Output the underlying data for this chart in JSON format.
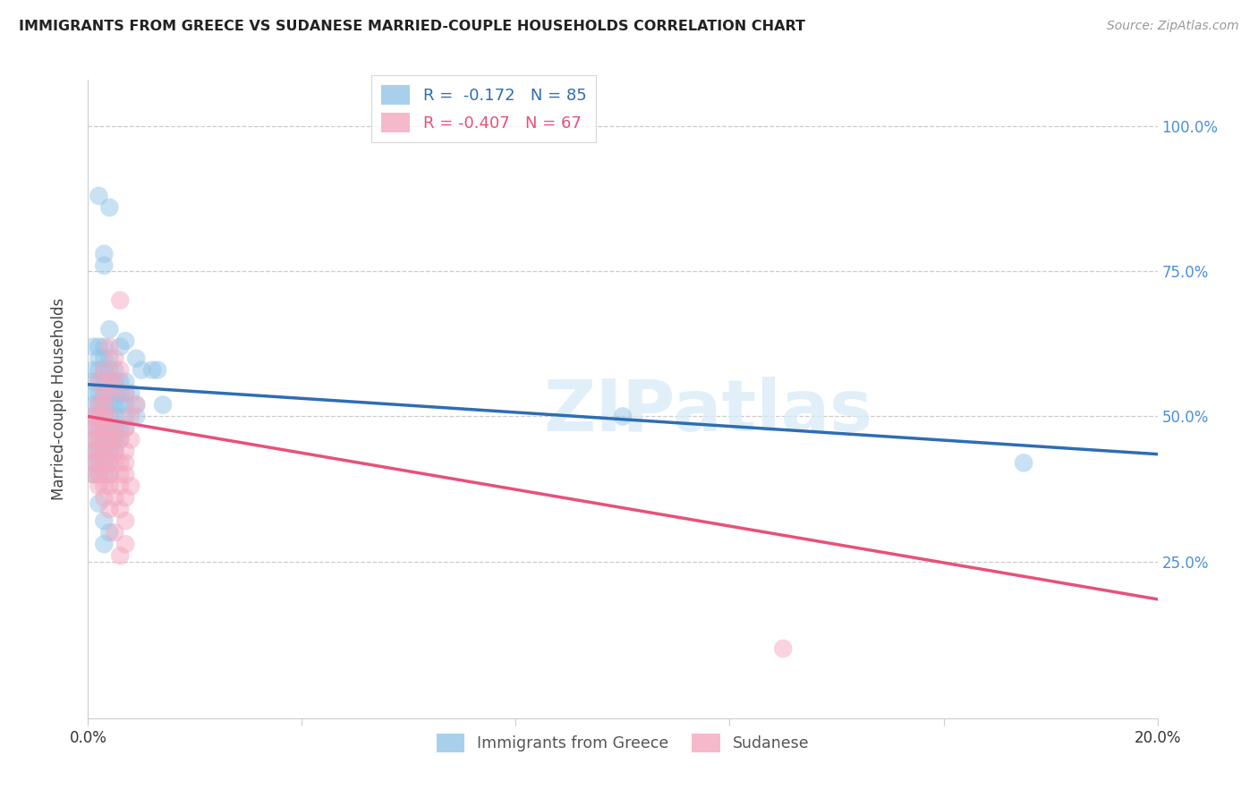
{
  "title": "IMMIGRANTS FROM GREECE VS SUDANESE MARRIED-COUPLE HOUSEHOLDS CORRELATION CHART",
  "source": "Source: ZipAtlas.com",
  "ylabel": "Married-couple Households",
  "xlim": [
    0.0,
    0.2
  ],
  "ylim": [
    -0.02,
    1.08
  ],
  "blue_color": "#92C5E8",
  "pink_color": "#F4A8C0",
  "blue_line_color": "#2E6DB4",
  "pink_line_color": "#E8507A",
  "right_axis_color": "#4A90D9",
  "watermark": "ZIPatlas",
  "legend_R_blue": "-0.172",
  "legend_N_blue": "85",
  "legend_R_pink": "-0.407",
  "legend_N_pink": "67",
  "legend_label_blue": "Immigrants from Greece",
  "legend_label_pink": "Sudanese",
  "blue_line": [
    [
      0.0,
      0.555
    ],
    [
      0.2,
      0.435
    ]
  ],
  "pink_line": [
    [
      0.0,
      0.5
    ],
    [
      0.2,
      0.185
    ]
  ],
  "blue_scatter": [
    [
      0.002,
      0.88
    ],
    [
      0.004,
      0.86
    ],
    [
      0.003,
      0.78
    ],
    [
      0.003,
      0.76
    ],
    [
      0.004,
      0.65
    ],
    [
      0.007,
      0.63
    ],
    [
      0.001,
      0.62
    ],
    [
      0.002,
      0.62
    ],
    [
      0.003,
      0.62
    ],
    [
      0.006,
      0.62
    ],
    [
      0.002,
      0.6
    ],
    [
      0.003,
      0.6
    ],
    [
      0.004,
      0.6
    ],
    [
      0.009,
      0.6
    ],
    [
      0.001,
      0.58
    ],
    [
      0.002,
      0.58
    ],
    [
      0.003,
      0.58
    ],
    [
      0.004,
      0.58
    ],
    [
      0.005,
      0.58
    ],
    [
      0.01,
      0.58
    ],
    [
      0.012,
      0.58
    ],
    [
      0.013,
      0.58
    ],
    [
      0.001,
      0.56
    ],
    [
      0.002,
      0.56
    ],
    [
      0.003,
      0.56
    ],
    [
      0.004,
      0.56
    ],
    [
      0.005,
      0.56
    ],
    [
      0.006,
      0.56
    ],
    [
      0.007,
      0.56
    ],
    [
      0.001,
      0.54
    ],
    [
      0.002,
      0.54
    ],
    [
      0.003,
      0.54
    ],
    [
      0.004,
      0.54
    ],
    [
      0.005,
      0.54
    ],
    [
      0.006,
      0.54
    ],
    [
      0.007,
      0.54
    ],
    [
      0.008,
      0.54
    ],
    [
      0.001,
      0.52
    ],
    [
      0.002,
      0.52
    ],
    [
      0.003,
      0.52
    ],
    [
      0.004,
      0.52
    ],
    [
      0.005,
      0.52
    ],
    [
      0.006,
      0.52
    ],
    [
      0.007,
      0.52
    ],
    [
      0.009,
      0.52
    ],
    [
      0.014,
      0.52
    ],
    [
      0.001,
      0.5
    ],
    [
      0.002,
      0.5
    ],
    [
      0.003,
      0.5
    ],
    [
      0.004,
      0.5
    ],
    [
      0.005,
      0.5
    ],
    [
      0.007,
      0.5
    ],
    [
      0.009,
      0.5
    ],
    [
      0.1,
      0.5
    ],
    [
      0.001,
      0.48
    ],
    [
      0.002,
      0.48
    ],
    [
      0.003,
      0.48
    ],
    [
      0.004,
      0.48
    ],
    [
      0.005,
      0.48
    ],
    [
      0.006,
      0.48
    ],
    [
      0.007,
      0.48
    ],
    [
      0.001,
      0.46
    ],
    [
      0.002,
      0.46
    ],
    [
      0.003,
      0.46
    ],
    [
      0.004,
      0.46
    ],
    [
      0.005,
      0.46
    ],
    [
      0.006,
      0.46
    ],
    [
      0.001,
      0.44
    ],
    [
      0.002,
      0.44
    ],
    [
      0.003,
      0.44
    ],
    [
      0.004,
      0.44
    ],
    [
      0.005,
      0.44
    ],
    [
      0.001,
      0.42
    ],
    [
      0.002,
      0.42
    ],
    [
      0.003,
      0.42
    ],
    [
      0.004,
      0.42
    ],
    [
      0.001,
      0.4
    ],
    [
      0.002,
      0.4
    ],
    [
      0.004,
      0.4
    ],
    [
      0.002,
      0.35
    ],
    [
      0.003,
      0.32
    ],
    [
      0.004,
      0.3
    ],
    [
      0.003,
      0.28
    ],
    [
      0.175,
      0.42
    ]
  ],
  "pink_scatter": [
    [
      0.006,
      0.7
    ],
    [
      0.004,
      0.62
    ],
    [
      0.005,
      0.6
    ],
    [
      0.003,
      0.58
    ],
    [
      0.006,
      0.58
    ],
    [
      0.002,
      0.56
    ],
    [
      0.004,
      0.56
    ],
    [
      0.005,
      0.56
    ],
    [
      0.003,
      0.54
    ],
    [
      0.004,
      0.54
    ],
    [
      0.007,
      0.54
    ],
    [
      0.002,
      0.52
    ],
    [
      0.003,
      0.52
    ],
    [
      0.009,
      0.52
    ],
    [
      0.001,
      0.5
    ],
    [
      0.002,
      0.5
    ],
    [
      0.003,
      0.5
    ],
    [
      0.004,
      0.5
    ],
    [
      0.008,
      0.5
    ],
    [
      0.001,
      0.48
    ],
    [
      0.002,
      0.48
    ],
    [
      0.003,
      0.48
    ],
    [
      0.004,
      0.48
    ],
    [
      0.005,
      0.48
    ],
    [
      0.007,
      0.48
    ],
    [
      0.001,
      0.46
    ],
    [
      0.002,
      0.46
    ],
    [
      0.003,
      0.46
    ],
    [
      0.004,
      0.46
    ],
    [
      0.005,
      0.46
    ],
    [
      0.006,
      0.46
    ],
    [
      0.008,
      0.46
    ],
    [
      0.001,
      0.44
    ],
    [
      0.002,
      0.44
    ],
    [
      0.003,
      0.44
    ],
    [
      0.004,
      0.44
    ],
    [
      0.005,
      0.44
    ],
    [
      0.007,
      0.44
    ],
    [
      0.001,
      0.42
    ],
    [
      0.002,
      0.42
    ],
    [
      0.003,
      0.42
    ],
    [
      0.004,
      0.42
    ],
    [
      0.005,
      0.42
    ],
    [
      0.006,
      0.42
    ],
    [
      0.007,
      0.42
    ],
    [
      0.001,
      0.4
    ],
    [
      0.002,
      0.4
    ],
    [
      0.003,
      0.4
    ],
    [
      0.004,
      0.4
    ],
    [
      0.006,
      0.4
    ],
    [
      0.007,
      0.4
    ],
    [
      0.002,
      0.38
    ],
    [
      0.003,
      0.38
    ],
    [
      0.004,
      0.38
    ],
    [
      0.006,
      0.38
    ],
    [
      0.008,
      0.38
    ],
    [
      0.003,
      0.36
    ],
    [
      0.005,
      0.36
    ],
    [
      0.007,
      0.36
    ],
    [
      0.004,
      0.34
    ],
    [
      0.006,
      0.34
    ],
    [
      0.007,
      0.32
    ],
    [
      0.005,
      0.3
    ],
    [
      0.007,
      0.28
    ],
    [
      0.006,
      0.26
    ],
    [
      0.13,
      0.1
    ]
  ]
}
